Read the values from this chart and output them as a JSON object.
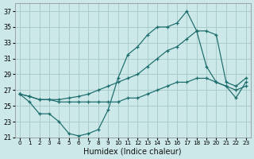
{
  "xlabel": "Humidex (Indice chaleur)",
  "background_color": "#cce8e8",
  "grid_color": "#aacccc",
  "line_color": "#1a6b6b",
  "xlim": [
    -0.5,
    23.5
  ],
  "ylim": [
    21,
    38
  ],
  "yticks": [
    21,
    23,
    25,
    27,
    29,
    31,
    33,
    35,
    37
  ],
  "xticks": [
    0,
    1,
    2,
    3,
    4,
    5,
    6,
    7,
    8,
    9,
    10,
    11,
    12,
    13,
    14,
    15,
    16,
    17,
    18,
    19,
    20,
    21,
    22,
    23
  ],
  "series": [
    [
      26.5,
      25.5,
      24.0,
      24.0,
      23.0,
      21.5,
      21.2,
      21.5,
      22.0,
      24.5,
      28.5,
      31.5,
      32.5,
      34.0,
      35.0,
      35.0,
      35.5,
      37.0,
      34.5,
      30.0,
      28.0,
      27.5,
      26.0,
      28.0
    ],
    [
      26.5,
      26.2,
      25.8,
      25.8,
      25.8,
      26.0,
      26.2,
      26.5,
      27.0,
      27.5,
      28.0,
      28.5,
      29.0,
      30.0,
      31.0,
      32.0,
      32.5,
      33.5,
      34.5,
      34.5,
      34.0,
      28.0,
      27.5,
      28.5
    ],
    [
      26.5,
      26.2,
      25.8,
      25.8,
      25.5,
      25.5,
      25.5,
      25.5,
      25.5,
      25.5,
      25.5,
      26.0,
      26.0,
      26.5,
      27.0,
      27.5,
      28.0,
      28.0,
      28.5,
      28.5,
      28.0,
      27.5,
      27.0,
      27.5
    ]
  ]
}
